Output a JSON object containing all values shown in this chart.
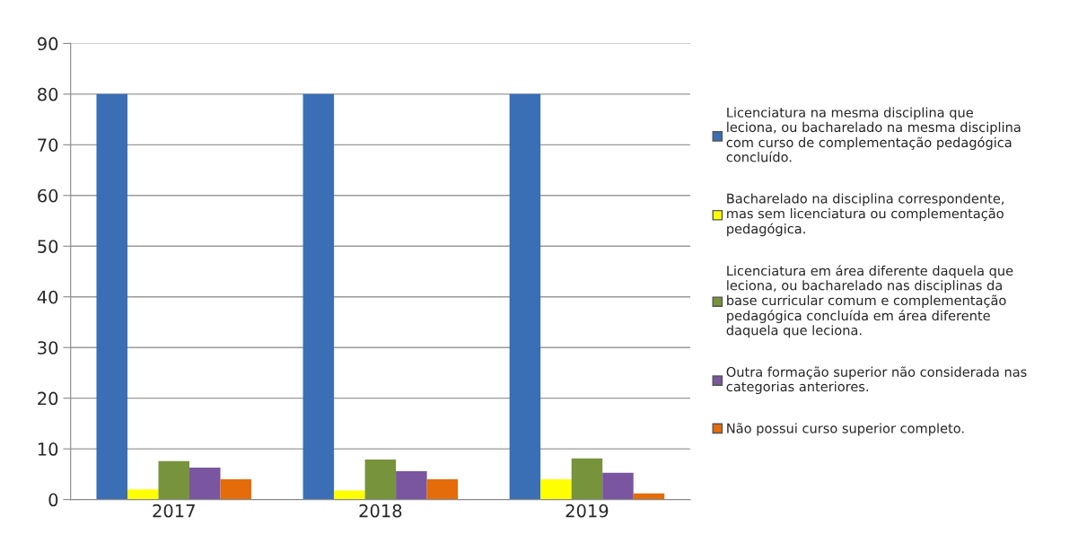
{
  "chart_data": {
    "type": "bar",
    "categories": [
      "2017",
      "2018",
      "2019"
    ],
    "series": [
      {
        "name": "Licenciatura na mesma disciplina que leciona, ou bacharelado na mesma disciplina com curso de complementação pedagógica concluído.",
        "color": "#3a6fb5",
        "values": [
          80,
          80,
          80
        ]
      },
      {
        "name": "Bacharelado na disciplina correspondente, mas sem licenciatura ou complementação pedagógica.",
        "color": "#ffff00",
        "values": [
          2.0,
          1.8,
          4.0
        ]
      },
      {
        "name": "Licenciatura em área diferente daquela que leciona, ou bacharelado nas disciplinas da base curricular comum e complementação pedagógica concluída em área diferente daquela que leciona.",
        "color": "#77933c",
        "values": [
          7.6,
          7.9,
          8.1
        ]
      },
      {
        "name": "Outra formação superior não considerada nas categorias anteriores.",
        "color": "#7a55a0",
        "values": [
          6.3,
          5.6,
          5.3
        ]
      },
      {
        "name": "Não possui curso superior completo.",
        "color": "#e46c0a",
        "values": [
          4.0,
          4.0,
          1.2
        ]
      }
    ],
    "ylim": [
      0,
      90
    ],
    "yticks": [
      0,
      10,
      20,
      30,
      40,
      50,
      60,
      70,
      80,
      90
    ],
    "grid": "y",
    "legend": "right"
  }
}
